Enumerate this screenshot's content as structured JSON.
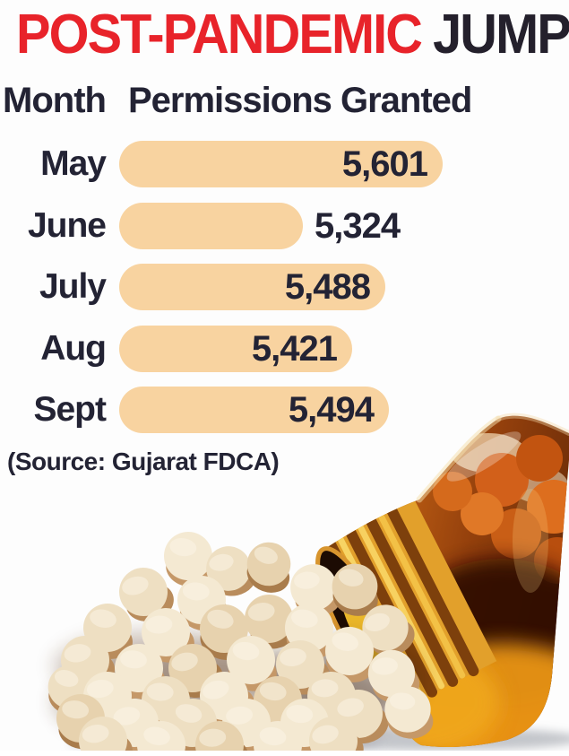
{
  "title": {
    "highlight": "POST-PANDEMIC",
    "rest": "JUMP",
    "highlight_color": "#e8232a",
    "rest_color": "#24202c"
  },
  "table_header": {
    "month": "Month",
    "value": "Permissions Granted"
  },
  "source_note": "(Source: Gujarat FDCA)",
  "text_color": "#232334",
  "chart_data": {
    "type": "bar",
    "orientation": "horizontal",
    "title": "POST-PANDEMIC JUMP",
    "column_headers": [
      "Month",
      "Permissions Granted"
    ],
    "categories": [
      "May",
      "June",
      "July",
      "Aug",
      "Sept"
    ],
    "values": [
      5601,
      5324,
      5488,
      5421,
      5494
    ],
    "value_labels": [
      "5,601",
      "5,324",
      "5,488",
      "5,421",
      "5,494"
    ],
    "value_label_placement": [
      "inside",
      "outside",
      "inside",
      "inside",
      "inside"
    ],
    "bar_color": "#f8d3a0",
    "source": "(Source: Gujarat FDCA)",
    "grid": false,
    "legend": false
  },
  "photo": {
    "name": "pills-spilling-from-amber-bottle"
  }
}
